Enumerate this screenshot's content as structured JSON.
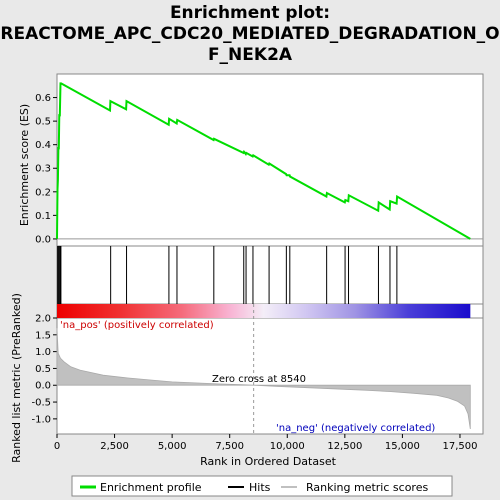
{
  "chart_data": {
    "type": "line",
    "title_line1": "Enrichment plot:",
    "title_line2": "REACTOME_APC_CDC20_MEDIATED_DEGRADATION_O",
    "title_line3": "F_NEK2A",
    "xlabel": "Rank in Ordered Dataset",
    "es_ylabel": "Enrichment score (ES)",
    "rank_ylabel_line1": "Ranked list metric (PreRanked)",
    "xlim": [
      0,
      18500
    ],
    "es_ylim": [
      -0.03,
      0.7
    ],
    "rank_ylim": [
      -1.45,
      2.0
    ],
    "x_ticks": [
      0,
      2500,
      5000,
      7500,
      10000,
      12500,
      15000,
      17500
    ],
    "x_tick_labels": [
      "0",
      "2,500",
      "5,000",
      "7,500",
      "10,000",
      "12,500",
      "15,000",
      "17,500"
    ],
    "es_ticks": [
      0.0,
      0.1,
      0.2,
      0.3,
      0.4,
      0.5,
      0.6
    ],
    "es_tick_labels": [
      "0.0",
      "0.1",
      "0.2",
      "0.3",
      "0.4",
      "0.5",
      "0.6"
    ],
    "rank_ticks": [
      2.0,
      1.5,
      1.0,
      0.5,
      0.0,
      -0.5,
      -1.0
    ],
    "rank_tick_labels": [
      "2.0",
      "1.5",
      "1.0",
      "0.5",
      "0.0",
      "-0.5",
      "-1.0"
    ],
    "series": [
      {
        "name": "Enrichment profile",
        "color": "#00dd00",
        "x": [
          0,
          20,
          40,
          60,
          80,
          100,
          120,
          150,
          180,
          2300,
          2320,
          3000,
          3020,
          4850,
          4870,
          5200,
          5220,
          6800,
          6820,
          8100,
          8120,
          8200,
          8220,
          8500,
          8520,
          9200,
          9220,
          9950,
          9970,
          10100,
          10120,
          11700,
          11720,
          12500,
          12520,
          12650,
          12670,
          13950,
          13970,
          14450,
          14470,
          14750,
          14770,
          17950
        ],
        "y": [
          0.0,
          0.21,
          0.25,
          0.39,
          0.38,
          0.53,
          0.52,
          0.66,
          0.66,
          0.545,
          0.585,
          0.55,
          0.585,
          0.485,
          0.51,
          0.49,
          0.505,
          0.42,
          0.425,
          0.365,
          0.37,
          0.36,
          0.365,
          0.35,
          0.355,
          0.315,
          0.32,
          0.275,
          0.27,
          0.27,
          0.265,
          0.18,
          0.195,
          0.155,
          0.165,
          0.16,
          0.185,
          0.12,
          0.155,
          0.125,
          0.16,
          0.15,
          0.18,
          0.0
        ]
      }
    ],
    "hits": [
      30,
      60,
      100,
      140,
      170,
      2330,
      3020,
      4860,
      5210,
      6810,
      8110,
      8210,
      8510,
      9210,
      9960,
      10110,
      11710,
      12510,
      12660,
      13960,
      14460,
      14760
    ],
    "ranking_metric": {
      "name": "Ranking metric scores",
      "x": [
        0,
        50,
        150,
        300,
        600,
        1000,
        2000,
        3000,
        4000,
        5000,
        6000,
        7000,
        8000,
        8540,
        9500,
        10500,
        11500,
        12500,
        13500,
        14500,
        15500,
        16500,
        17000,
        17400,
        17700,
        17850,
        17950
      ],
      "y": [
        1.7,
        0.95,
        0.8,
        0.7,
        0.55,
        0.45,
        0.3,
        0.22,
        0.16,
        0.1,
        0.07,
        0.04,
        0.015,
        0.0,
        -0.03,
        -0.06,
        -0.09,
        -0.12,
        -0.15,
        -0.19,
        -0.24,
        -0.3,
        -0.38,
        -0.48,
        -0.62,
        -0.85,
        -1.3
      ]
    },
    "pos_label": "'na_pos' (positively correlated)",
    "neg_label": "'na_neg' (negatively correlated)",
    "zero_cross_label": "Zero cross at 8540",
    "zero_cross": 8540,
    "legend": [
      "Enrichment profile",
      "Hits",
      "Ranking metric scores"
    ],
    "colors": {
      "es_line": "#00dd00",
      "hits": "#000000",
      "metric_fill": "#c0c0c0",
      "pos_text": "#cc0000",
      "neg_text": "#0000bb",
      "bar_red": "#ee0000",
      "bar_blue": "#1a0ccc"
    },
    "grid": false,
    "legend_position": "bottom"
  }
}
